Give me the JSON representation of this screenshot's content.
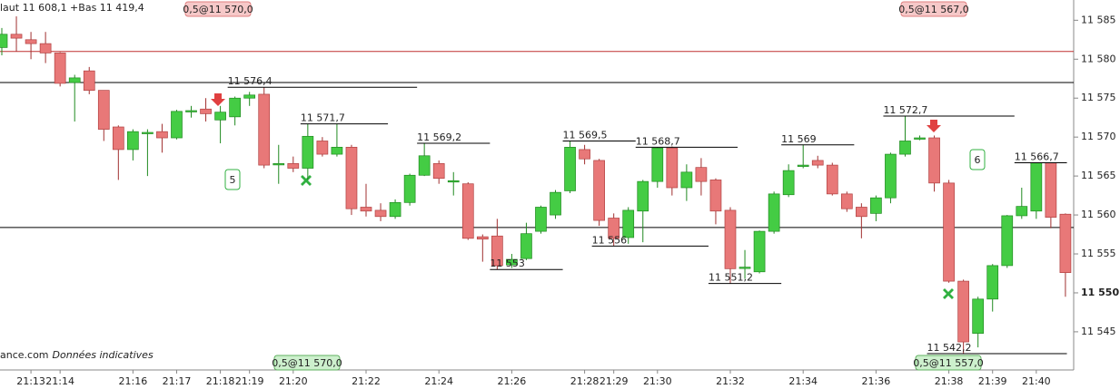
{
  "chart_data": {
    "type": "candlestick",
    "header": "laut 11 608,1 +Bas 11 419,4",
    "footer": {
      "site": "ance.com",
      "note": "Données indicatives"
    },
    "categories": [
      null,
      null,
      "21:13",
      null,
      "21:14",
      null,
      null,
      null,
      null,
      "21:16",
      null,
      null,
      "21:17",
      null,
      null,
      "21:18",
      null,
      "21:19",
      null,
      null,
      "21:20",
      null,
      null,
      null,
      null,
      "21:22",
      null,
      null,
      null,
      null,
      "21:24",
      null,
      null,
      null,
      null,
      "21:26",
      null,
      null,
      null,
      null,
      "21:28",
      null,
      "21:29",
      null,
      null,
      "21:30",
      null,
      null,
      null,
      null,
      "21:32",
      null,
      null,
      null,
      null,
      "21:34",
      null,
      null,
      null,
      null,
      "21:36",
      null,
      null,
      null,
      null,
      "21:38",
      null,
      null,
      "21:39",
      null,
      null,
      "21:40",
      null,
      null
    ],
    "open": [
      11581.5,
      11583.2,
      11582.5,
      11582,
      11580.8,
      11577,
      11578.5,
      11576,
      11571.3,
      11568.4,
      11570.5,
      11570.7,
      11569.9,
      11573.3,
      11573.6,
      11572.2,
      11572.6,
      11575,
      11575.5,
      11566.5,
      11566.6,
      11566,
      11569.5,
      11567.8,
      11568.7,
      11561,
      11560.6,
      11559.8,
      11561.6,
      11565.1,
      11566.6,
      11564.3,
      11564,
      11557.2,
      11557.3,
      11553.6,
      11554.4,
      11557.9,
      11560,
      11563.1,
      11568.4,
      11567,
      11559.6,
      11557.1,
      11560.5,
      11564.3,
      11568.6,
      11563.5,
      11566.1,
      11564.5,
      11560.6,
      11553.2,
      11552.7,
      11557.9,
      11562.6,
      11566.3,
      11567,
      11566.4,
      11562.7,
      11561,
      11560.2,
      11562.2,
      11567.8,
      11569.8,
      11569.9,
      11564.1,
      11551.5,
      11544.8,
      11549.2,
      11553.5,
      11559.9,
      11560.5,
      11566.7,
      11560.1
    ],
    "high": [
      11584,
      11585.5,
      11583.5,
      11583.5,
      11580.9,
      11578,
      11579,
      11576,
      11571.5,
      11571,
      11571,
      11571.7,
      11573.5,
      11574,
      11575,
      11574,
      11575.2,
      11575.8,
      11576.4,
      11569,
      11567.5,
      11571.7,
      11570,
      11571.7,
      11569,
      11564,
      11561.5,
      11562,
      11565.3,
      11569.2,
      11567,
      11565.5,
      11564.2,
      11557.5,
      11559.5,
      11555,
      11559,
      11561.2,
      11563.2,
      11569.5,
      11569,
      11567.2,
      11560.2,
      11561,
      11564.5,
      11568.7,
      11568.8,
      11566.5,
      11567.3,
      11564.7,
      11561,
      11555.5,
      11558,
      11563,
      11566.5,
      11569,
      11567.6,
      11566.7,
      11563,
      11561.5,
      11562.5,
      11568,
      11572.7,
      11570.2,
      11570.2,
      11564.5,
      11551.7,
      11549.5,
      11553.7,
      11560,
      11563.5,
      11566.7,
      11566.7,
      11560.2
    ],
    "low": [
      11580.5,
      11581,
      11580,
      11579.5,
      11576.5,
      11572,
      11575.5,
      11569.5,
      11564.5,
      11567,
      11565,
      11568,
      11569.7,
      11572.5,
      11572,
      11569.2,
      11571.5,
      11574,
      11566,
      11564,
      11565.5,
      11564.5,
      11567.5,
      11567.5,
      11560,
      11559.8,
      11559.2,
      11559.5,
      11561.2,
      11565,
      11564,
      11562.5,
      11556.8,
      11554,
      11553,
      11553.2,
      11554.2,
      11557.6,
      11559.5,
      11562.8,
      11566.5,
      11558.6,
      11556,
      11556.3,
      11556.5,
      11563.5,
      11562.5,
      11561.8,
      11562.5,
      11558.8,
      11551.2,
      11551.8,
      11552.5,
      11557.6,
      11562.3,
      11566,
      11566,
      11562.5,
      11560.4,
      11557,
      11559.2,
      11561.5,
      11567.5,
      11569.6,
      11563,
      11551.3,
      11542.2,
      11543,
      11547.6,
      11553.2,
      11559.5,
      11559.5,
      11558.3,
      11549.5
    ],
    "close": [
      11583.2,
      11582.7,
      11582,
      11580.8,
      11576.9,
      11577.6,
      11576,
      11571,
      11568.4,
      11570.7,
      11570.6,
      11569.9,
      11573.3,
      11573.4,
      11573,
      11573.2,
      11575,
      11575.4,
      11566.4,
      11566.6,
      11566,
      11570.1,
      11567.8,
      11568.7,
      11560.8,
      11560.5,
      11559.8,
      11561.6,
      11565.1,
      11567.6,
      11564.7,
      11564.4,
      11557,
      11556.9,
      11553.5,
      11554.3,
      11557.6,
      11561,
      11562.9,
      11568.7,
      11567.2,
      11559.3,
      11557,
      11560.6,
      11564.3,
      11568.6,
      11563.5,
      11565.5,
      11564.3,
      11560.5,
      11553.1,
      11553.3,
      11557.9,
      11562.7,
      11565.7,
      11566.4,
      11566.4,
      11562.7,
      11560.8,
      11559.8,
      11562.2,
      11567.8,
      11569.5,
      11569.9,
      11564.1,
      11551.5,
      11543.7,
      11549.2,
      11553.5,
      11559.9,
      11561.1,
      11566.7,
      11559.7,
      11552.6
    ],
    "up_color": "#44cc44",
    "down_color": "#e87878",
    "ylim": [
      11540.1,
      11587.6
    ],
    "yticks": [
      {
        "value": 11545,
        "label": "11 545"
      },
      {
        "value": 11550,
        "label": "11 550"
      },
      {
        "value": 11555,
        "label": "11 555"
      },
      {
        "value": 11560,
        "label": "11 560"
      },
      {
        "value": 11565,
        "label": "11 565"
      },
      {
        "value": 11570,
        "label": "11 570"
      },
      {
        "value": 11575,
        "label": "11 575"
      },
      {
        "value": 11580,
        "label": "11 580"
      },
      {
        "value": 11585,
        "label": "11 585"
      }
    ],
    "reference_lines": [
      {
        "value": 11581,
        "color": "#c03030"
      },
      {
        "value": 11577,
        "color": "#000000"
      },
      {
        "value": 11558.4,
        "color": "#000000"
      }
    ],
    "annotations": [
      {
        "value": 11576.4,
        "label": "11 576,4"
      },
      {
        "value": 11571.7,
        "label": "11 571,7"
      },
      {
        "value": 11569.2,
        "label": "11 569,2"
      },
      {
        "value": 11553,
        "label": "11 553"
      },
      {
        "value": 11569.5,
        "label": "11 569,5"
      },
      {
        "value": 11568.7,
        "label": "11 568,7"
      },
      {
        "value": 11556,
        "label": "11 556"
      },
      {
        "value": 11551.2,
        "label": "11 551,2"
      },
      {
        "value": 11569,
        "label": "11 569"
      },
      {
        "value": 11572.7,
        "label": "11 572,7"
      },
      {
        "value": 11566.7,
        "label": "11 566,7"
      },
      {
        "value": 11542.2,
        "label": "11 542,2"
      }
    ],
    "orders": [
      {
        "label": "0,5@11 570,0",
        "side": "sell"
      },
      {
        "label": "0,5@11 567,0",
        "side": "sell"
      },
      {
        "label": "0,5@11 570,0",
        "side": "buy"
      },
      {
        "label": "0,5@11 557,0",
        "side": "buy"
      }
    ],
    "counters": [
      "5",
      "6"
    ]
  }
}
